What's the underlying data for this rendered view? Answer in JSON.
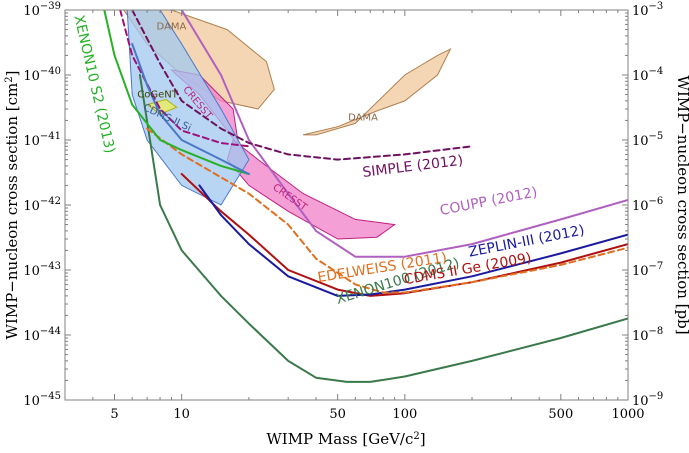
{
  "chart_data": {
    "type": "line",
    "title": "",
    "xlabel": "WIMP Mass [GeV/c2]",
    "ylabel_left": "WIMP–nucleon cross section [cm2]",
    "ylabel_right": "WIMP–nucleon cross section [pb]",
    "x_scale": "log",
    "y_scale": "log",
    "xlim": [
      3,
      1000
    ],
    "ylim": [
      1e-45,
      1e-39
    ],
    "x_ticks": [
      {
        "value": 5,
        "label": "5"
      },
      {
        "value": 10,
        "label": "10"
      },
      {
        "value": 50,
        "label": "50"
      },
      {
        "value": 100,
        "label": "100"
      },
      {
        "value": 500,
        "label": "500"
      },
      {
        "value": 1000,
        "label": "1000"
      }
    ],
    "y_ticks_left": [
      {
        "exp": -45,
        "label": "10",
        "sup": "−45"
      },
      {
        "exp": -44,
        "label": "10",
        "sup": "−44"
      },
      {
        "exp": -43,
        "label": "10",
        "sup": "−43"
      },
      {
        "exp": -42,
        "label": "10",
        "sup": "−42"
      },
      {
        "exp": -41,
        "label": "10",
        "sup": "−41"
      },
      {
        "exp": -40,
        "label": "10",
        "sup": "−40"
      },
      {
        "exp": -39,
        "label": "10",
        "sup": "−39"
      }
    ],
    "y_ticks_right": [
      {
        "exp": -45,
        "label": "10",
        "sup": "−9"
      },
      {
        "exp": -44,
        "label": "10",
        "sup": "−8"
      },
      {
        "exp": -43,
        "label": "10",
        "sup": "−7"
      },
      {
        "exp": -42,
        "label": "10",
        "sup": "−6"
      },
      {
        "exp": -41,
        "label": "10",
        "sup": "−5"
      },
      {
        "exp": -40,
        "label": "10",
        "sup": "−4"
      },
      {
        "exp": -39,
        "label": "10",
        "sup": "−3"
      }
    ],
    "series": [
      {
        "name": "XENON100 (2012)",
        "color": "#3a7a4a",
        "dash": false,
        "points": [
          [
            6.5,
            1e-40
          ],
          [
            8,
            1e-42
          ],
          [
            10,
            2e-43
          ],
          [
            15,
            4e-44
          ],
          [
            20,
            1.5e-44
          ],
          [
            30,
            4e-45
          ],
          [
            40,
            2.2e-45
          ],
          [
            55,
            1.9e-45
          ],
          [
            70,
            1.9e-45
          ],
          [
            100,
            2.3e-45
          ],
          [
            200,
            4e-45
          ],
          [
            500,
            9e-45
          ],
          [
            1000,
            1.8e-44
          ]
        ]
      },
      {
        "name": "CDMS II Ge (2009)",
        "color": "#b01010",
        "dash": false,
        "points": [
          [
            10,
            3e-42
          ],
          [
            15,
            8e-43
          ],
          [
            20,
            3.5e-43
          ],
          [
            30,
            1e-43
          ],
          [
            50,
            5e-44
          ],
          [
            70,
            4e-44
          ],
          [
            100,
            4.4e-44
          ],
          [
            200,
            6.5e-44
          ],
          [
            500,
            1.3e-43
          ],
          [
            1000,
            2.5e-43
          ]
        ]
      },
      {
        "name": "ZEPLIN-III (2012)",
        "color": "#1a1aa0",
        "dash": false,
        "points": [
          [
            12,
            2e-42
          ],
          [
            15,
            7e-43
          ],
          [
            20,
            2.5e-43
          ],
          [
            30,
            8e-44
          ],
          [
            50,
            4e-44
          ],
          [
            70,
            4.2e-44
          ],
          [
            100,
            5e-44
          ],
          [
            200,
            8e-44
          ],
          [
            500,
            1.8e-43
          ],
          [
            1000,
            3.5e-43
          ]
        ]
      },
      {
        "name": "EDELWEISS (2011)",
        "color": "#e07020",
        "dash": true,
        "points": [
          [
            7,
            1.5e-41
          ],
          [
            10,
            6e-42
          ],
          [
            20,
            1.5e-42
          ],
          [
            30,
            5e-43
          ],
          [
            40,
            1.5e-43
          ],
          [
            60,
            6e-44
          ],
          [
            80,
            4.5e-44
          ],
          [
            100,
            4.5e-44
          ],
          [
            200,
            6.5e-44
          ],
          [
            500,
            1.2e-43
          ],
          [
            1000,
            2.2e-43
          ]
        ]
      },
      {
        "name": "COUPP (2012)",
        "color": "#b060c0",
        "dash": false,
        "points": [
          [
            10,
            1e-39
          ],
          [
            15,
            1e-40
          ],
          [
            20,
            1e-41
          ],
          [
            30,
            1.5e-42
          ],
          [
            40,
            4e-43
          ],
          [
            60,
            1.6e-43
          ],
          [
            100,
            1.6e-43
          ],
          [
            200,
            2.5e-43
          ],
          [
            500,
            6e-43
          ],
          [
            1000,
            1.2e-42
          ]
        ]
      },
      {
        "name": "SIMPLE (2012)",
        "color": "#701060",
        "dash": true,
        "points": [
          [
            6,
            1e-39
          ],
          [
            8,
            1.5e-40
          ],
          [
            10,
            4e-41
          ],
          [
            15,
            1.5e-41
          ],
          [
            20,
            9e-42
          ],
          [
            30,
            6e-42
          ],
          [
            50,
            5e-42
          ],
          [
            100,
            6e-42
          ],
          [
            200,
            8e-42
          ]
        ]
      },
      {
        "name": "SIMPLE (2012)",
        "color": "#a0107a",
        "dash": true,
        "label": false,
        "points": [
          [
            5.3,
            1e-39
          ],
          [
            6,
            2e-40
          ],
          [
            8,
            3e-41
          ],
          [
            10,
            1.4e-41
          ],
          [
            15,
            9e-42
          ],
          [
            20,
            8e-42
          ]
        ]
      },
      {
        "name": "XENON10 S2 (2013)",
        "color": "#28b028",
        "dash": false,
        "points": [
          [
            4.5,
            1e-39
          ],
          [
            5,
            2e-40
          ],
          [
            6,
            3.5e-41
          ],
          [
            8,
            1e-41
          ],
          [
            10,
            7e-42
          ],
          [
            15,
            4e-42
          ],
          [
            20,
            3e-42
          ]
        ]
      },
      {
        "name": "CDMS-II Si bound",
        "color": "#4a78c8",
        "dash": false,
        "label": false,
        "points": [
          [
            6,
            3e-40
          ],
          [
            7,
            7e-41
          ],
          [
            8,
            2.5e-41
          ],
          [
            10,
            1e-41
          ],
          [
            15,
            5e-42
          ],
          [
            20,
            3e-42
          ]
        ]
      }
    ],
    "curve_labels": [
      {
        "text": "XENON100 (2012)",
        "color": "#3a7a4a",
        "x": 50,
        "y": 3e-44,
        "angle": -17
      },
      {
        "text": "CDMS II Ge (2009)",
        "color": "#b01010",
        "x": 100,
        "y": 6e-44,
        "angle": -10
      },
      {
        "text": "ZEPLIN-III (2012)",
        "color": "#1a1aa0",
        "x": 195,
        "y": 1.6e-43,
        "angle": -11
      },
      {
        "text": "EDELWEISS (2011)",
        "color": "#e07020",
        "x": 41,
        "y": 6.5e-44,
        "angle": -9
      },
      {
        "text": "COUPP (2012)",
        "color": "#b060c0",
        "x": 145,
        "y": 7e-43,
        "angle": -11
      },
      {
        "text": "SIMPLE (2012)",
        "color": "#701060",
        "x": 65,
        "y": 2.7e-42,
        "angle": -7
      },
      {
        "text": "XENON10 S2 (2013)",
        "color": "#28b028",
        "x": 3.3,
        "y": 8e-40,
        "angle": 77
      }
    ],
    "regions": [
      {
        "name": "DAMA",
        "fill": "#f0c89c",
        "stroke": "#b08050",
        "points": [
          [
            5.5,
            1e-39
          ],
          [
            9,
            1e-39
          ],
          [
            16,
            5e-40
          ],
          [
            24,
            1.6e-40
          ],
          [
            26,
            6e-41
          ],
          [
            22,
            3e-41
          ],
          [
            15,
            4e-41
          ],
          [
            10,
            1e-40
          ],
          [
            7,
            3e-40
          ]
        ]
      },
      {
        "name": "DAMA",
        "fill": "#f0c89c",
        "stroke": "#b08050",
        "points": [
          [
            40,
            1.2e-41
          ],
          [
            60,
            1.8e-41
          ],
          [
            100,
            1e-40
          ],
          [
            140,
            2e-40
          ],
          [
            160,
            2.5e-40
          ],
          [
            140,
            1e-40
          ],
          [
            100,
            4e-41
          ],
          [
            75,
            2.8e-41
          ],
          [
            50,
            1.6e-41
          ],
          [
            35,
            1.2e-41
          ]
        ]
      },
      {
        "name": "CRESST",
        "fill": "#f080c8",
        "stroke": "#c02080",
        "points": [
          [
            9,
            1.2e-40
          ],
          [
            12,
            1e-40
          ],
          [
            17,
            3e-41
          ],
          [
            18,
            8e-42
          ],
          [
            16,
            1.4e-41
          ],
          [
            12,
            5e-41
          ],
          [
            9.5,
            1e-40
          ]
        ]
      },
      {
        "name": "CRESST",
        "fill": "#f080c8",
        "stroke": "#c02080",
        "points": [
          [
            17,
            1e-41
          ],
          [
            22,
            5e-42
          ],
          [
            35,
            1.5e-42
          ],
          [
            60,
            6e-43
          ],
          [
            90,
            5e-43
          ],
          [
            75,
            3.2e-43
          ],
          [
            50,
            3e-43
          ],
          [
            30,
            8e-43
          ],
          [
            20,
            2e-42
          ],
          [
            16,
            5e-42
          ]
        ]
      },
      {
        "name": "CDMS-II Si",
        "fill": "#a0c8f0",
        "stroke": "#4a78c8",
        "points": [
          [
            5.7,
            1e-39
          ],
          [
            8,
            1e-39
          ],
          [
            10,
            3e-40
          ],
          [
            15,
            3e-41
          ],
          [
            20,
            5e-42
          ],
          [
            15,
            1e-42
          ],
          [
            10,
            2e-42
          ],
          [
            7,
            1e-41
          ],
          [
            6,
            5e-41
          ]
        ]
      },
      {
        "name": "CoGeNT",
        "fill": "#f0f050",
        "stroke": "#b0b010",
        "points": [
          [
            7,
            3.5e-41
          ],
          [
            8.5,
            4.2e-41
          ],
          [
            9.5,
            3.2e-41
          ],
          [
            8,
            2.5e-41
          ]
        ]
      }
    ],
    "region_labels": [
      {
        "text": "DAMA",
        "x": 9,
        "y": 5e-40,
        "color": "#8a6a4a",
        "angle": 0
      },
      {
        "text": "DAMA",
        "x": 65,
        "y": 2e-41,
        "color": "#8a6a4a",
        "angle": 0
      },
      {
        "text": "CRESST",
        "x": 11.5,
        "y": 3.5e-41,
        "color": "#c02080",
        "angle": 50
      },
      {
        "text": "CRESST",
        "x": 30,
        "y": 1.2e-42,
        "color": "#c02080",
        "angle": 35
      },
      {
        "text": "CDMS-II Si",
        "x": 8.5,
        "y": 2e-41,
        "color": "#3a5a9a",
        "angle": 25
      },
      {
        "text": "CoGeNT",
        "x": 7.8,
        "y": 4.5e-41,
        "color": "#404000",
        "angle": 0
      }
    ]
  }
}
